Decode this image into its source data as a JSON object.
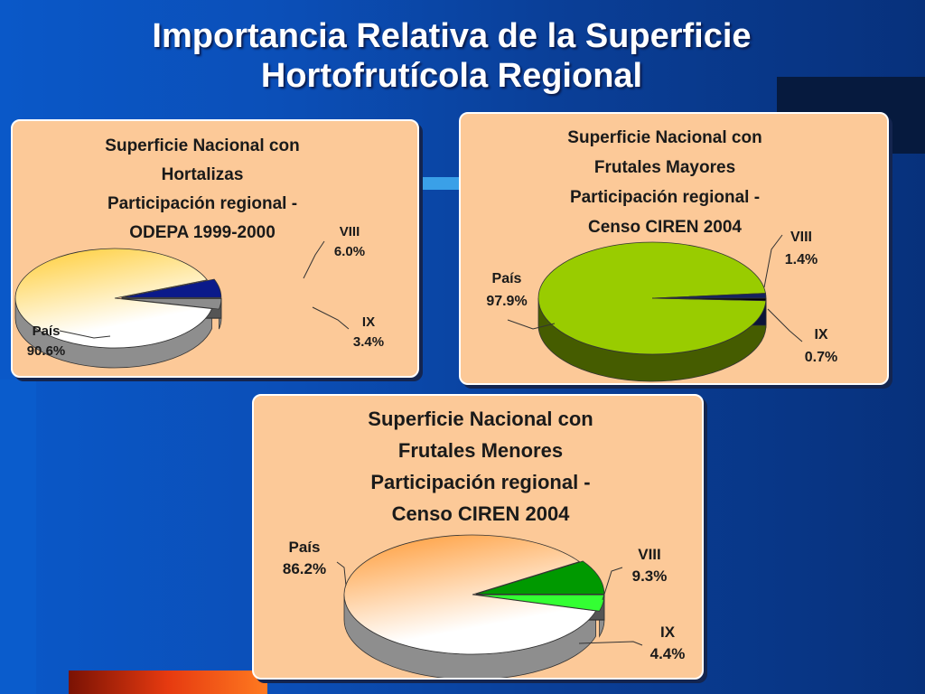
{
  "slide": {
    "title_line1": "Importancia Relativa de la Superficie",
    "title_line2": "Hortofrutícola Regional"
  },
  "colors": {
    "background": "#0b4fb8",
    "panel": "#fcc998",
    "hortalizas_pais": "#ffcc33",
    "hortalizas_viii": "#0b1a8a",
    "hortalizas_ix": "#8c8c8c",
    "mayores_pais": "#99cc00",
    "mayores_viii": "#14215f",
    "mayores_ix": "#000000",
    "menores_pais": "#ff9933",
    "menores_viii": "#009900",
    "menores_ix": "#33ff33"
  },
  "chart_data": [
    {
      "type": "pie",
      "title_lines": [
        "Superficie Nacional con",
        "Hortalizas",
        "Participación regional -",
        "ODEPA 1999-2000"
      ],
      "categories": [
        "País",
        "VIII",
        "IX"
      ],
      "values": [
        90.6,
        6.0,
        3.4
      ],
      "labels": [
        "90.6%",
        "6.0%",
        "3.4%"
      ]
    },
    {
      "type": "pie",
      "title_lines": [
        "Superficie Nacional con",
        "Frutales Mayores",
        "Participación regional -",
        "Censo CIREN 2004"
      ],
      "categories": [
        "País",
        "VIII",
        "IX"
      ],
      "values": [
        97.9,
        1.4,
        0.7
      ],
      "labels": [
        "97.9%",
        "1.4%",
        "0.7%"
      ]
    },
    {
      "type": "pie",
      "title_lines": [
        "Superficie Nacional con",
        "Frutales Menores",
        "Participación regional -",
        "Censo CIREN 2004"
      ],
      "categories": [
        "País",
        "VIII",
        "IX"
      ],
      "values": [
        86.2,
        9.3,
        4.4
      ],
      "labels": [
        "86.2%",
        "9.3%",
        "4.4%"
      ]
    }
  ]
}
